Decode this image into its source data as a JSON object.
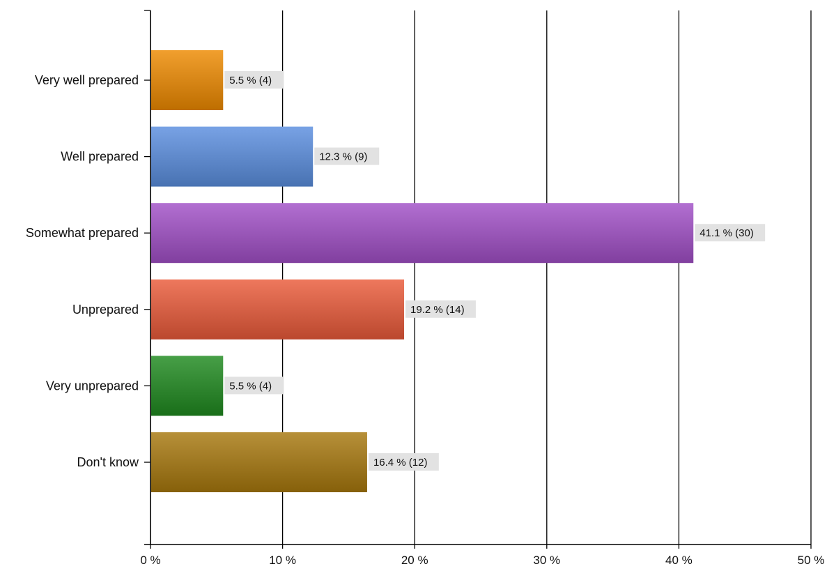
{
  "chart_data": {
    "type": "bar",
    "orientation": "horizontal",
    "categories": [
      "Very well prepared",
      "Well prepared",
      "Somewhat prepared",
      "Unprepared",
      "Very unprepared",
      "Don't know"
    ],
    "values": [
      5.5,
      12.3,
      41.1,
      19.2,
      5.5,
      16.4
    ],
    "counts": [
      4,
      9,
      30,
      14,
      4,
      12
    ],
    "data_labels": [
      "5.5 % (4)",
      "12.3 % (9)",
      "41.1 % (30)",
      "19.2 % (14)",
      "5.5 % (4)",
      "16.4 % (12)"
    ],
    "colors": [
      "#ee8a00",
      "#5a8edf",
      "#a14fc7",
      "#ea5a3a",
      "#1f8a1f",
      "#a7780d"
    ],
    "x_ticks": [
      "0 %",
      "10 %",
      "20 %",
      "30 %",
      "40 %",
      "50 %"
    ],
    "xlim": [
      0,
      50
    ],
    "grid": "vertical",
    "legend": "none",
    "title": "",
    "xlabel": "",
    "ylabel": ""
  }
}
